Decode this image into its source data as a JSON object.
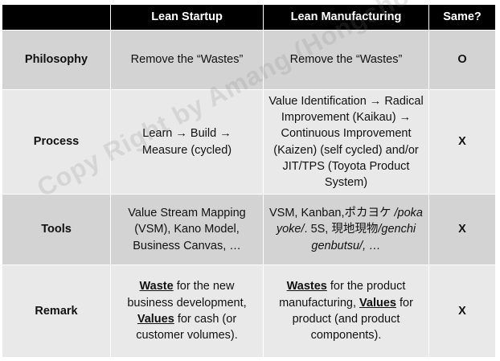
{
  "header": {
    "col1": "",
    "col2": "Lean Startup",
    "col3": "Lean Manufacturing",
    "col4": "Same?"
  },
  "rows": [
    {
      "label": "Philosophy",
      "startup": "Remove the “Wastes”",
      "manufacturing": "Remove the “Wastes”",
      "same": "O"
    },
    {
      "label": "Process",
      "startup_a": "Learn → Build →",
      "startup_b": "Measure (cycled)",
      "manufacturing": "Value Identification → Radical Improvement (Kaikau) → Continuous Improvement (Kaizen) (self cycled) and/or JIT/TPS (Toyota Product System)",
      "same": "X"
    },
    {
      "label": "Tools",
      "startup": "Value Stream Mapping (VSM), Kano Model, Business Canvas, …",
      "manufacturing_a": "VSM, Kanban,ポカヨケ",
      "manufacturing_b": "/poka yoke/",
      "manufacturing_c": ". 5S,",
      "manufacturing_d": "現地現物",
      "manufacturing_e": "/genchi genbutsu/, …",
      "same": "X"
    },
    {
      "label": "Remark",
      "startup_w": "Waste",
      "startup_w_rest": " for the new business development, ",
      "startup_v": "Values",
      "startup_v_rest": " for cash (or customer volumes).",
      "manufacturing_w": "Wastes",
      "manufacturing_w_rest": " for the product manufacturing, ",
      "manufacturing_v": "Values",
      "manufacturing_v_rest": " for product (and product components).",
      "same": "X"
    }
  ],
  "watermark": "Copy Right by Amang (Hongshoo) Kim",
  "colors": {
    "header_bg": "#000000",
    "header_text": "#ffffff",
    "row_dark": "#d3d3d3",
    "row_light": "#e9e9e9"
  }
}
